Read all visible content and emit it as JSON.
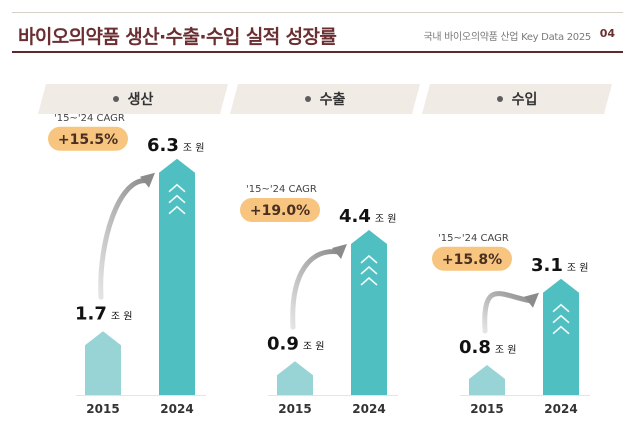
{
  "header": {
    "title": "바이오의약품 생산·수출·수입 실적 성장률",
    "source": "국내 바이오의약품 산업 Key Data 2025",
    "page": "04"
  },
  "colors": {
    "title": "#6b2f32",
    "bar_2015": "#98d3d5",
    "bar_2024": "#4fbfc1",
    "cagr_pill": "#f7c57f",
    "arrow": "#8b8b8b"
  },
  "chart_data": [
    {
      "type": "bar",
      "title": "생산",
      "categories": [
        "2015",
        "2024"
      ],
      "values": [
        1.7,
        6.3
      ],
      "unit": "조 원",
      "value_labels": [
        "1.7",
        "6.3"
      ],
      "cagr_label": "'15~'24 CAGR",
      "cagr_value": "+15.5%"
    },
    {
      "type": "bar",
      "title": "수출",
      "categories": [
        "2015",
        "2024"
      ],
      "values": [
        0.9,
        4.4
      ],
      "unit": "조 원",
      "value_labels": [
        "0.9",
        "4.4"
      ],
      "cagr_label": "'15~'24 CAGR",
      "cagr_value": "+19.0%"
    },
    {
      "type": "bar",
      "title": "수입",
      "categories": [
        "2015",
        "2024"
      ],
      "values": [
        0.8,
        3.1
      ],
      "unit": "조 원",
      "value_labels": [
        "0.8",
        "3.1"
      ],
      "cagr_label": "'15~'24 CAGR",
      "cagr_value": "+15.8%"
    }
  ]
}
